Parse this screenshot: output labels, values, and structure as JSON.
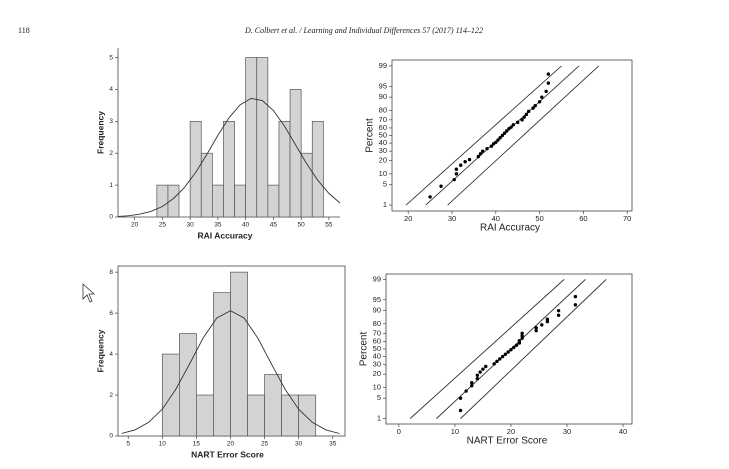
{
  "header": {
    "page_number": "118",
    "running_title": "D. Colbert et al. / Learning and Individual Differences 57 (2017) 114–122"
  },
  "chart_data": [
    {
      "type": "histogram",
      "x_label": "RAI Accuracy",
      "y_label": "Frequency",
      "bins": [
        24,
        26,
        28,
        30,
        32,
        34,
        36,
        38,
        40,
        42,
        44,
        46,
        48,
        50,
        52,
        54
      ],
      "values": [
        1,
        1,
        0,
        3,
        2,
        1,
        3,
        1,
        5,
        5,
        1,
        3,
        4,
        2,
        3
      ],
      "color": "#d3d3d3",
      "curve": {
        "x": [
          17,
          19,
          21,
          23,
          25,
          27,
          29,
          31,
          33,
          35,
          37,
          39,
          41,
          43,
          45,
          47,
          49,
          51,
          53,
          55,
          57
        ],
        "y": [
          0.02,
          0.04,
          0.09,
          0.18,
          0.33,
          0.58,
          0.93,
          1.4,
          1.96,
          2.56,
          3.11,
          3.52,
          3.72,
          3.65,
          3.34,
          2.85,
          2.26,
          1.67,
          1.15,
          0.74,
          0.44
        ]
      },
      "xlim": [
        17,
        57
      ],
      "xticks": [
        20,
        25,
        30,
        35,
        40,
        45,
        50,
        55
      ],
      "ylim": [
        0,
        5.3
      ],
      "yticks": [
        0,
        1,
        2,
        3,
        4,
        5
      ],
      "frame": false
    },
    {
      "type": "scatter",
      "x_label": "RAI Accuracy",
      "y_label": "Percent",
      "yscale": "probit",
      "x": [
        25,
        27.5,
        30.5,
        31,
        31,
        32,
        33,
        34,
        36,
        36.5,
        37,
        38,
        39,
        39.5,
        40,
        40.5,
        41,
        41.5,
        42,
        42.5,
        43,
        43.5,
        44,
        45,
        46,
        46.5,
        47,
        47.5,
        48.5,
        49,
        50,
        50.5,
        51.5,
        52,
        52
      ],
      "values": [
        2,
        4.5,
        7,
        10,
        13,
        16,
        19,
        21,
        24,
        27,
        30,
        33,
        36,
        39,
        41,
        44,
        47,
        50,
        53,
        56,
        59,
        61,
        64,
        67,
        70,
        73,
        76,
        79,
        82,
        84,
        87,
        90,
        93,
        96,
        98
      ],
      "color": "#000000",
      "reference_lines": [
        {
          "x": [
            19.5,
            55
          ],
          "y": [
            1,
            99
          ]
        },
        {
          "x": [
            24,
            59
          ],
          "y": [
            1,
            99
          ]
        },
        {
          "x": [
            29,
            63.5
          ],
          "y": [
            1,
            99
          ]
        }
      ],
      "xlim": [
        16.3,
        71.1
      ],
      "xticks": [
        20,
        30,
        40,
        50,
        60,
        70
      ],
      "ylim": [
        0.58,
        99.42
      ],
      "yticks": [
        1,
        5,
        10,
        20,
        30,
        40,
        50,
        60,
        70,
        80,
        90,
        95,
        99
      ],
      "frame": true
    },
    {
      "type": "histogram",
      "x_label": "NART Error Score",
      "y_label": "Frequency",
      "bins": [
        10,
        12.5,
        15,
        17.5,
        20,
        22.5,
        25,
        27.5,
        30,
        32.5
      ],
      "values": [
        4,
        5,
        2,
        7,
        8,
        2,
        3,
        2,
        2
      ],
      "color": "#d3d3d3",
      "curve": {
        "x": [
          4,
          6,
          8,
          10,
          12,
          14,
          16,
          18,
          20,
          22,
          24,
          26,
          28,
          30,
          32,
          34,
          36
        ],
        "y": [
          0.12,
          0.3,
          0.67,
          1.31,
          2.29,
          3.52,
          4.79,
          5.76,
          6.12,
          5.76,
          4.79,
          3.52,
          2.29,
          1.31,
          0.67,
          0.3,
          0.12
        ]
      },
      "xlim": [
        3.5,
        36.8
      ],
      "xticks": [
        5,
        10,
        15,
        20,
        25,
        30,
        35
      ],
      "ylim": [
        0,
        8.3
      ],
      "yticks": [
        0,
        2,
        4,
        6,
        8
      ],
      "frame": true
    },
    {
      "type": "scatter",
      "x_label": "NART Error Score",
      "y_label": "Percent",
      "yscale": "probit",
      "x": [
        11,
        11,
        12,
        13,
        13,
        14,
        14,
        14.5,
        15,
        15.5,
        17,
        17.5,
        18,
        18.5,
        19,
        19.5,
        20,
        20.5,
        21,
        21.5,
        21.5,
        22,
        22,
        22,
        24.5,
        24.5,
        25.5,
        26.5,
        26.5,
        28.5,
        28.5,
        31.5,
        31.5
      ],
      "values": [
        2,
        5,
        8,
        11,
        13,
        16,
        19,
        22,
        25,
        28,
        31,
        34,
        37,
        40,
        43,
        46,
        49,
        52,
        55,
        58,
        61,
        64,
        67,
        70,
        73,
        76,
        79,
        82,
        84,
        87,
        90,
        93,
        96
      ],
      "color": "#000000",
      "reference_lines": [
        {
          "x": [
            2,
            29.5
          ],
          "y": [
            1,
            99
          ]
        },
        {
          "x": [
            6.7,
            33.3
          ],
          "y": [
            1,
            99
          ]
        },
        {
          "x": [
            11,
            37
          ],
          "y": [
            1,
            99
          ]
        }
      ],
      "xlim": [
        -2.3,
        41.6
      ],
      "xticks": [
        0,
        10,
        20,
        30,
        40
      ],
      "ylim": [
        0.61,
        99.39
      ],
      "yticks": [
        1,
        5,
        10,
        20,
        30,
        40,
        50,
        60,
        70,
        80,
        90,
        95,
        99
      ],
      "frame": true
    }
  ]
}
